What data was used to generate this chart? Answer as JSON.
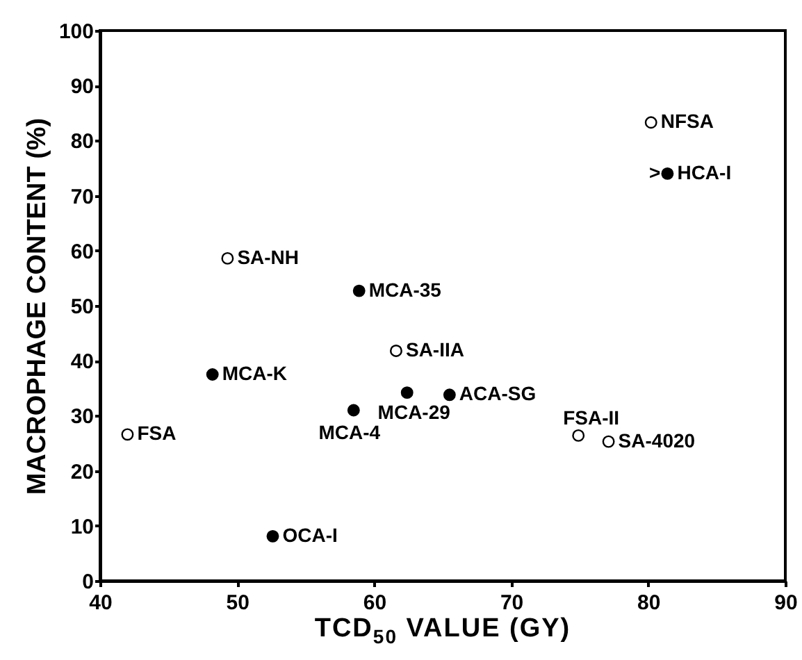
{
  "chart_data": {
    "type": "scatter",
    "xlabel": "TCD$_{50}$ VALUE (GY)",
    "ylabel": "MACROPHAGE CONTENT (%)",
    "xlim": [
      40,
      90
    ],
    "xticks": [
      40,
      50,
      60,
      70,
      80,
      90
    ],
    "ylim": [
      0,
      100
    ],
    "yticks": [
      0,
      10,
      20,
      30,
      40,
      50,
      60,
      70,
      80,
      90,
      100
    ],
    "grid": false,
    "legend": false,
    "marker": "circle",
    "series": [
      {
        "color": "#ffffff",
        "x": [
          42.0,
          49.3,
          61.6,
          74.9,
          77.1,
          80.2
        ],
        "values": [
          26.6,
          58.6,
          41.8,
          26.4,
          25.3,
          83.3
        ]
      },
      {
        "color": "#000000",
        "x": [
          48.2,
          52.6,
          58.9,
          58.5,
          62.4,
          65.5,
          81.4
        ],
        "values": [
          37.5,
          8.1,
          52.7,
          31.0,
          34.2,
          33.8,
          74.0
        ]
      }
    ],
    "annotations": [
      {
        "text": "FSA",
        "x": 42.0,
        "y": 26.6
      },
      {
        "text": "SA-NH",
        "x": 49.3,
        "y": 58.6
      },
      {
        "text": "MCA-K",
        "x": 48.2,
        "y": 37.5
      },
      {
        "text": "OCA-I",
        "x": 52.6,
        "y": 8.1
      },
      {
        "text": "MCA-35",
        "x": 58.9,
        "y": 52.7
      },
      {
        "text": "SA-IIA",
        "x": 61.6,
        "y": 41.8
      },
      {
        "text": "MCA-4",
        "x": 58.5,
        "y": 31.0
      },
      {
        "text": "MCA-29",
        "x": 62.4,
        "y": 34.2
      },
      {
        "text": "ACA-SG",
        "x": 65.5,
        "y": 33.8
      },
      {
        "text": "FSA-II",
        "x": 74.9,
        "y": 26.4
      },
      {
        "text": "SA-4020",
        "x": 77.1,
        "y": 25.3
      },
      {
        "text": "NFSA",
        "x": 80.2,
        "y": 83.3
      },
      {
        "text": ">",
        "x": 81.4,
        "y": 74.0
      },
      {
        "text": "HCA-I",
        "x": 81.4,
        "y": 74.0
      }
    ]
  }
}
